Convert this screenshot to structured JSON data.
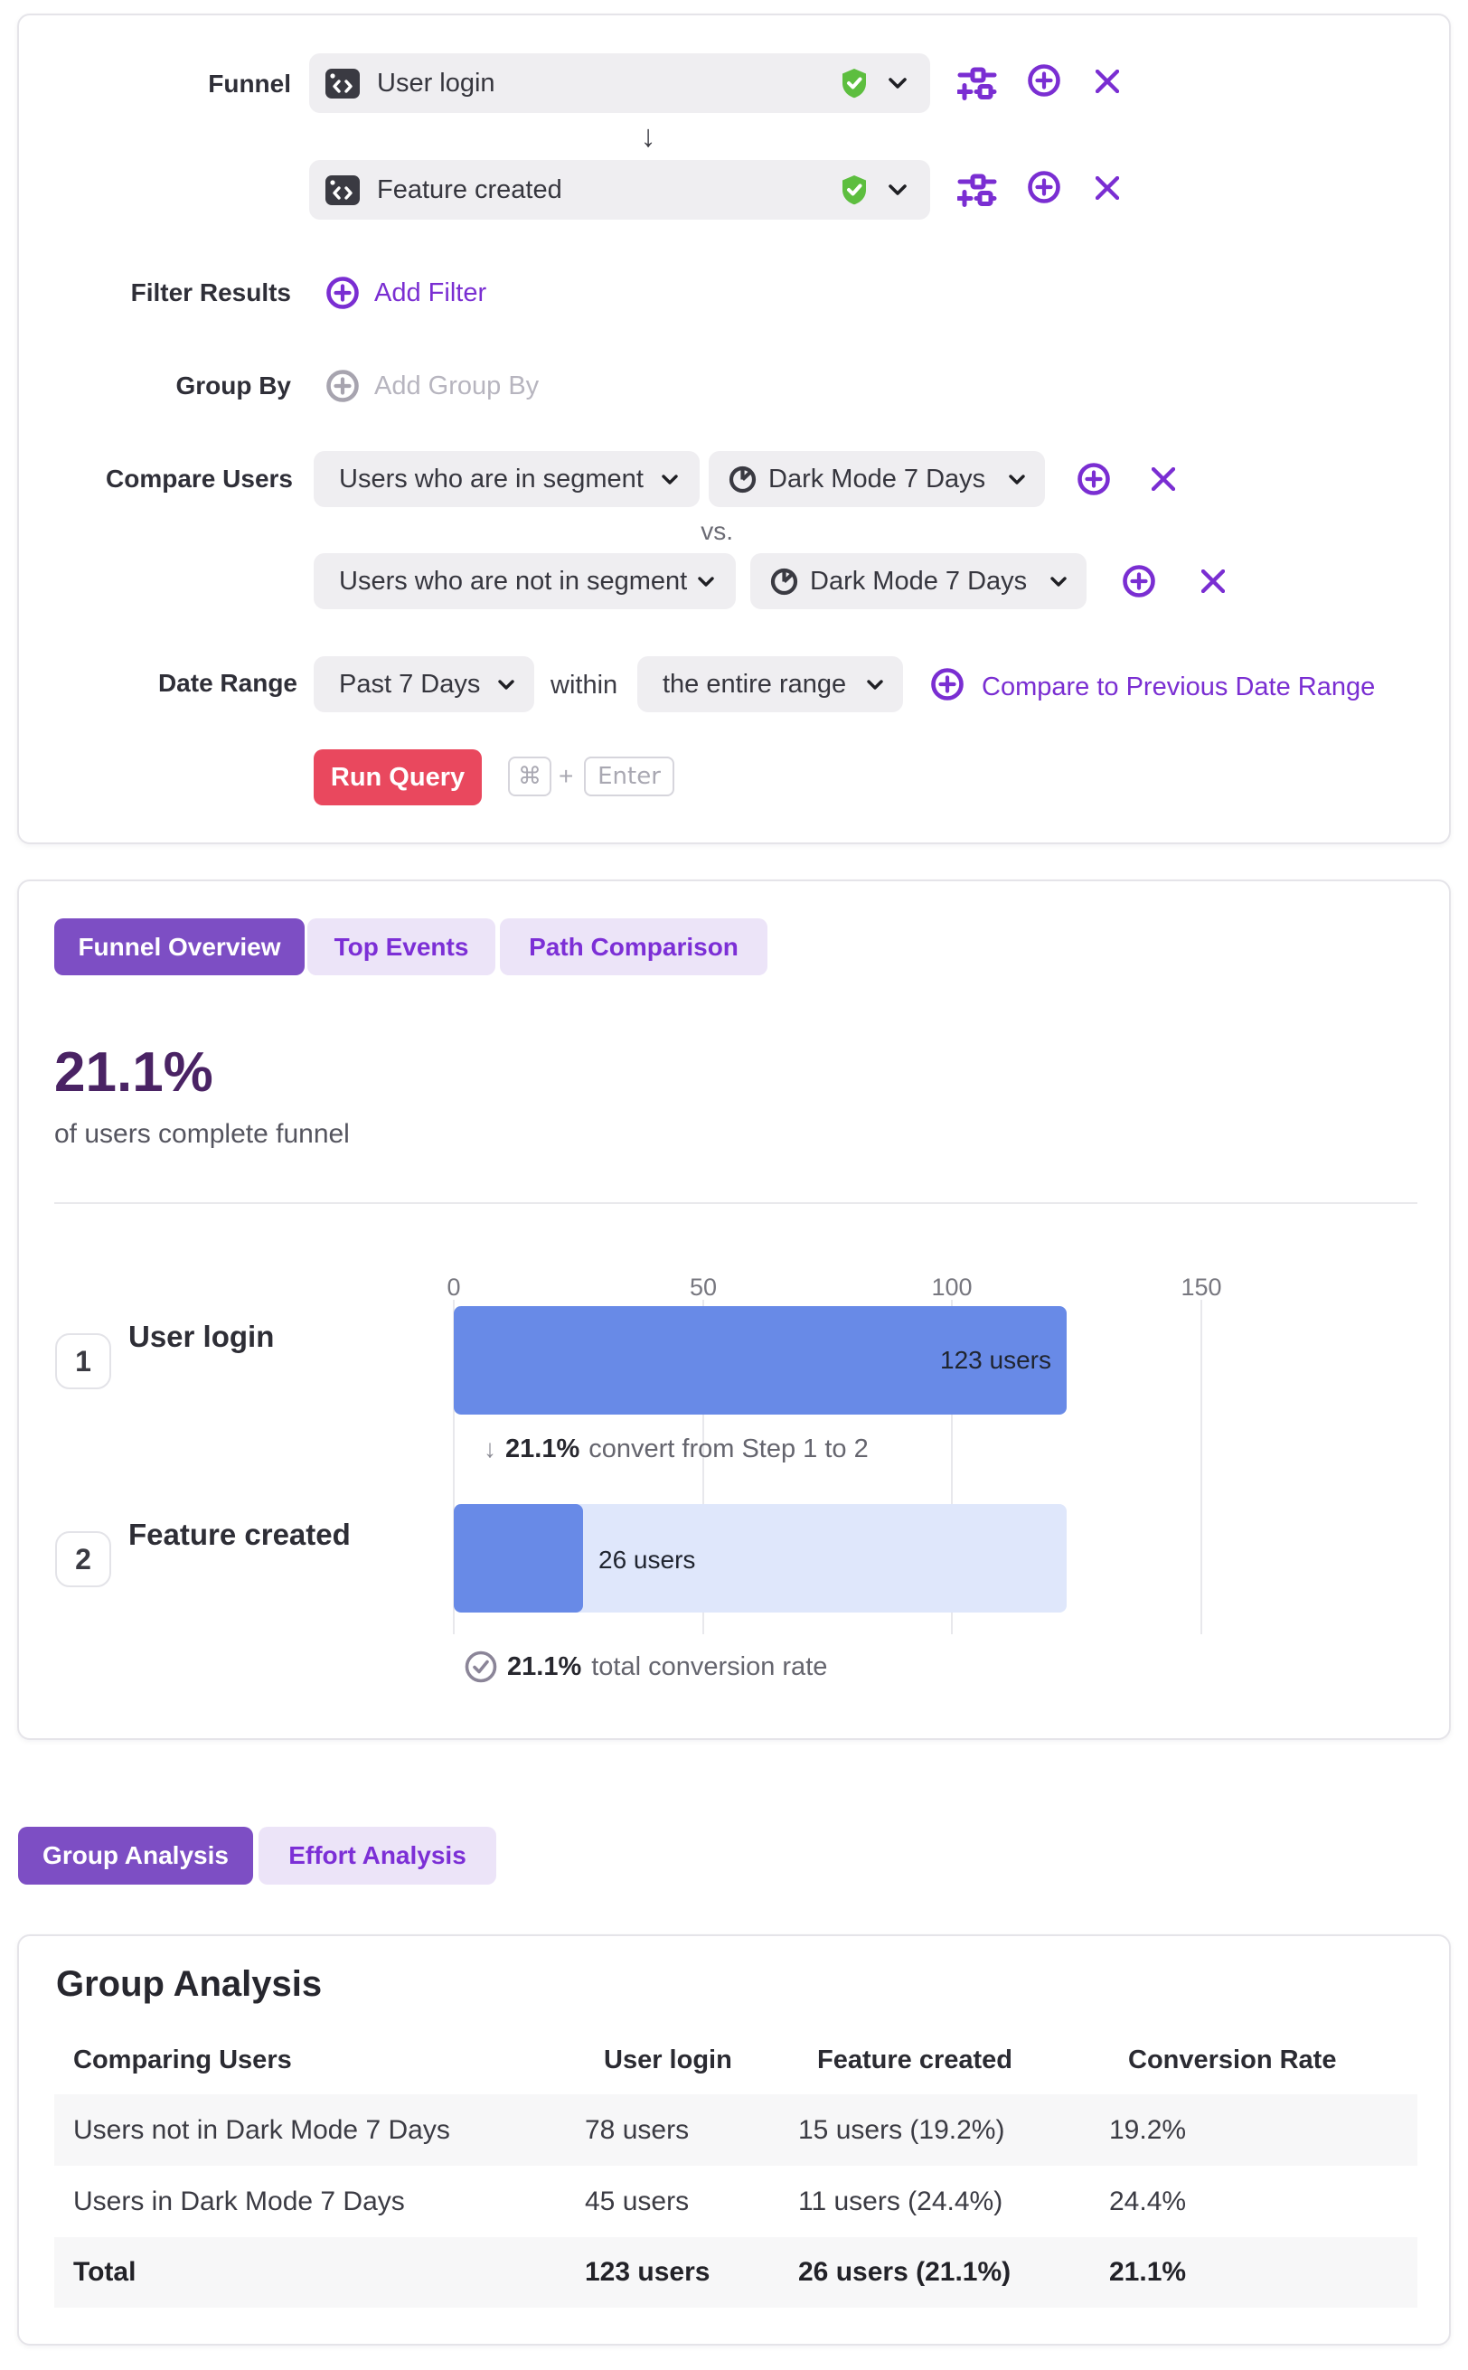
{
  "query_builder": {
    "funnel_label": "Funnel",
    "steps": [
      {
        "name": "User login"
      },
      {
        "name": "Feature created"
      }
    ],
    "filter_results_label": "Filter Results",
    "add_filter_label": "Add Filter",
    "group_by_label": "Group By",
    "add_group_by_label": "Add Group By",
    "compare_users_label": "Compare Users",
    "comparisons": [
      {
        "mode": "Users who are in segment",
        "segment": "Dark Mode 7 Days"
      },
      {
        "mode": "Users who are not in segment",
        "segment": "Dark Mode 7 Days"
      }
    ],
    "vs_label": "vs.",
    "date_range_label": "Date Range",
    "date_range_value": "Past 7 Days",
    "within_label": "within",
    "window_value": "the entire range",
    "compare_previous_label": "Compare to Previous Date Range",
    "run_query_label": "Run Query",
    "shortcut": {
      "cmd": "⌘",
      "plus": "+",
      "enter": "Enter"
    }
  },
  "results": {
    "tabs": [
      "Funnel Overview",
      "Top Events",
      "Path Comparison"
    ],
    "active_tab": "Funnel Overview",
    "headline_value": "21.1%",
    "headline_caption": "of users complete funnel"
  },
  "chart_data": {
    "type": "bar",
    "orientation": "horizontal",
    "categories": [
      "User login",
      "Feature created"
    ],
    "step_numbers": [
      "1",
      "2"
    ],
    "values": [
      123,
      26
    ],
    "value_labels": [
      "123 users",
      "26 users"
    ],
    "x_ticks": [
      "0",
      "50",
      "100",
      "150"
    ],
    "xlim": [
      0,
      150
    ],
    "grid": true,
    "annotations": {
      "step_conversion": {
        "arrow": "↓",
        "value": "21.1%",
        "text": "convert from Step 1 to 2"
      },
      "total_conversion": {
        "value": "21.1%",
        "text": "total conversion rate"
      }
    }
  },
  "analysis": {
    "tabs": [
      "Group Analysis",
      "Effort Analysis"
    ],
    "active_tab": "Group Analysis",
    "title": "Group Analysis",
    "table": {
      "columns": [
        "Comparing Users",
        "User login",
        "Feature created",
        "Conversion Rate"
      ],
      "rows": [
        [
          "Users not in Dark Mode 7 Days",
          "78 users",
          "15 users (19.2%)",
          "19.2%"
        ],
        [
          "Users in Dark Mode 7 Days",
          "45 users",
          "11 users (24.4%)",
          "24.4%"
        ]
      ],
      "total_row": [
        "Total",
        "123 users",
        "26 users (21.1%)",
        "21.1%"
      ]
    }
  },
  "colors": {
    "accent_purple": "#7a2ed2",
    "active_tab_purple": "#7d4ec4",
    "inactive_tab_bg": "#ece4f8",
    "headline_purple": "#4a2364",
    "run_button_red": "#e9485e",
    "bar_blue": "#688ae7",
    "bar_track_blue": "#dfe7fb",
    "verified_green": "#5dbe3f",
    "control_bg": "#efeef1"
  }
}
